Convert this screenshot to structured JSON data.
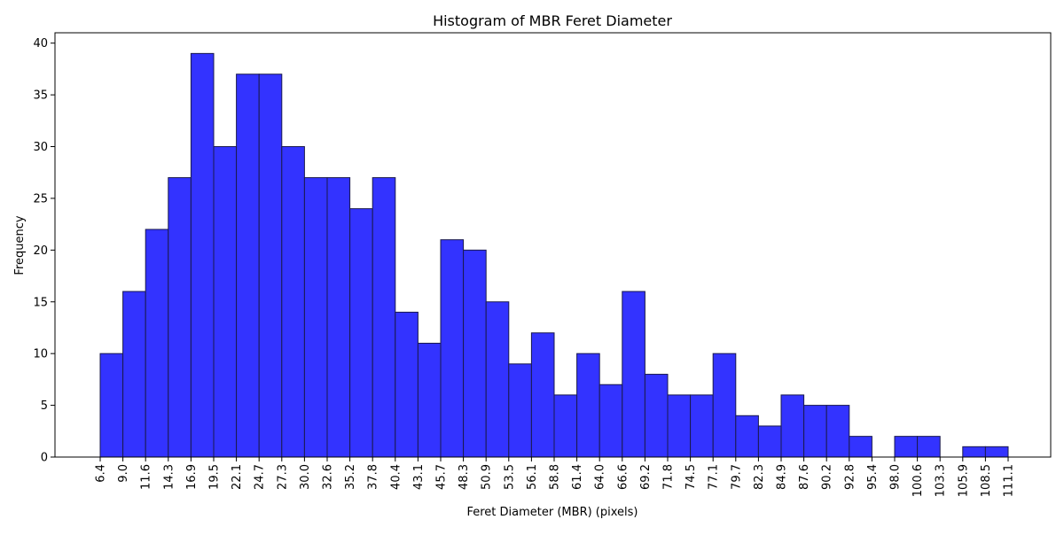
{
  "chart_data": {
    "type": "bar",
    "title": "Histogram of MBR Feret Diameter",
    "xlabel": "Feret Diameter (MBR) (pixels)",
    "ylabel": "Frequency",
    "bin_edges": [
      "6.4",
      "9.0",
      "11.6",
      "14.3",
      "16.9",
      "19.5",
      "22.1",
      "24.7",
      "27.3",
      "30.0",
      "32.6",
      "35.2",
      "37.8",
      "40.4",
      "43.1",
      "45.7",
      "48.3",
      "50.9",
      "53.5",
      "56.1",
      "58.8",
      "61.4",
      "64.0",
      "66.6",
      "69.2",
      "71.8",
      "74.5",
      "77.1",
      "79.7",
      "82.3",
      "84.9",
      "87.6",
      "90.2",
      "92.8",
      "95.4",
      "98.0",
      "100.6",
      "103.3",
      "105.9",
      "108.5",
      "111.1"
    ],
    "values": [
      10,
      16,
      22,
      27,
      39,
      30,
      37,
      37,
      30,
      27,
      27,
      24,
      27,
      14,
      11,
      21,
      20,
      15,
      9,
      12,
      6,
      10,
      7,
      16,
      8,
      6,
      6,
      10,
      4,
      3,
      6,
      5,
      5,
      2,
      0,
      2,
      2,
      0,
      1,
      1
    ],
    "y_ticks": [
      "0",
      "5",
      "10",
      "15",
      "20",
      "25",
      "30",
      "35",
      "40"
    ],
    "ylim": [
      0,
      41
    ],
    "bar_color": "#3333ff",
    "edge_color": "#1a1a4d",
    "grid": false
  }
}
